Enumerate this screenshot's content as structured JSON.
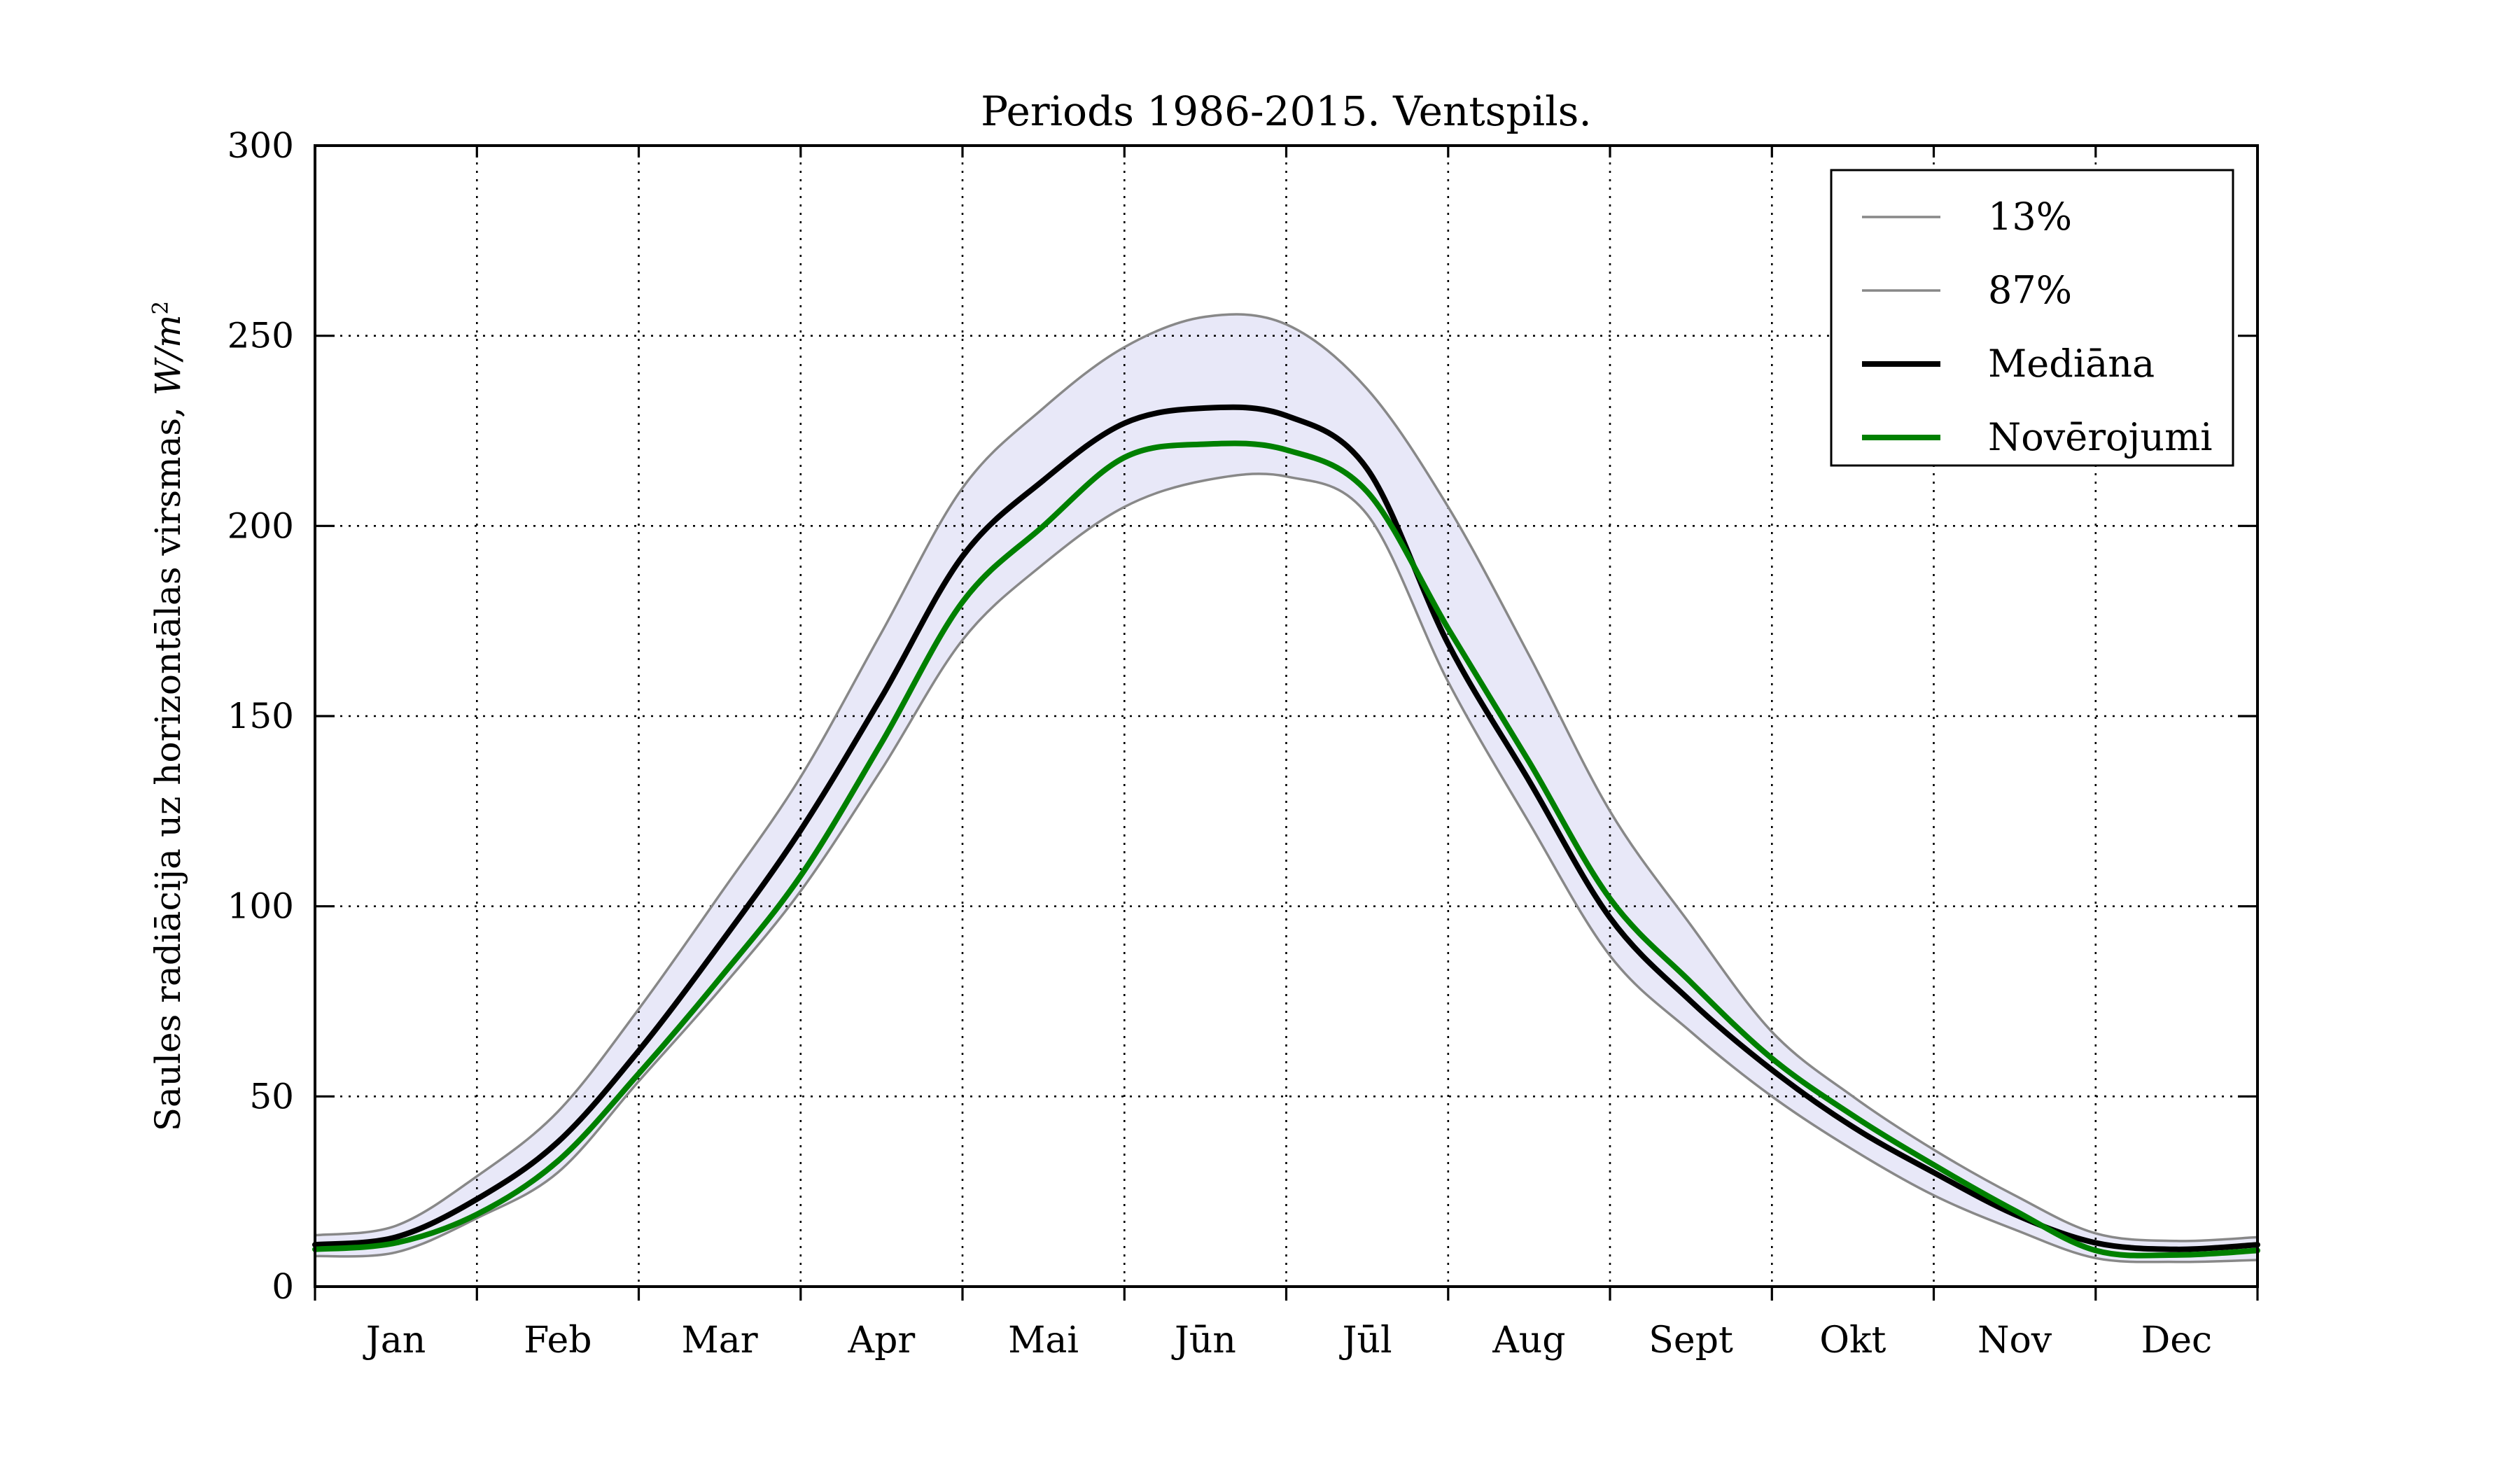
{
  "title": "Periods 1986-2015. Ventspils.",
  "ylabel": {
    "text": "Saules radiācija uz horizontālas virsmas, ",
    "math": "W/m",
    "sup": "2"
  },
  "chart_data": {
    "type": "line",
    "title": "Periods 1986-2015. Ventspils.",
    "xlabel": "",
    "ylabel": "Saules radiācija uz horizontālas virsmas, W/m²",
    "ylim": [
      0,
      300
    ],
    "yticks": [
      0,
      50,
      100,
      150,
      200,
      250,
      300
    ],
    "xticklabels": [
      "Jan",
      "Feb",
      "Mar",
      "Apr",
      "Mai",
      "Jūn",
      "Jūl",
      "Aug",
      "Sept",
      "Okt",
      "Nov",
      "Dec"
    ],
    "x_unit": "months, 0 = 1 Jan … 12 = 31 Dec",
    "grid": true,
    "grid_color": "#000000",
    "legend_position": "upper right",
    "band": {
      "lower": "13%",
      "upper": "87%",
      "fill": "#e8e8f8"
    },
    "x": [
      0,
      0.5,
      1,
      1.5,
      2,
      2.5,
      3,
      3.5,
      4,
      4.5,
      5,
      5.5,
      6,
      6.5,
      7,
      7.5,
      8,
      8.5,
      9,
      9.5,
      10,
      10.5,
      11,
      11.5,
      12
    ],
    "series": [
      {
        "name": "13%",
        "color": "#888888",
        "line_width": 3.5,
        "values": [
          8,
          9,
          18,
          30,
          54,
          78,
          104,
          136,
          170,
          190,
          205,
          212,
          213,
          203,
          159,
          122,
          87,
          67,
          50,
          36,
          24,
          15,
          7.5,
          6.5,
          7
        ]
      },
      {
        "name": "87%",
        "color": "#888888",
        "line_width": 3.5,
        "values": [
          13.5,
          16,
          29,
          46,
          73,
          103,
          134,
          172,
          210,
          231,
          247,
          255,
          253,
          236,
          205,
          166,
          125,
          95,
          67,
          50,
          36,
          24,
          14,
          12,
          13
        ]
      },
      {
        "name": "Mediāna",
        "color": "#000000",
        "line_width": 8,
        "values": [
          11,
          13,
          23,
          38,
          62,
          90,
          120,
          155,
          192,
          212,
          227,
          231,
          229,
          215,
          169,
          133,
          97,
          75,
          57,
          42,
          30,
          19,
          11.5,
          9.8,
          11
        ]
      },
      {
        "name": "Novērojumi",
        "color": "#008000",
        "line_width": 8,
        "values": [
          9.8,
          11.5,
          19,
          33,
          56,
          81,
          108,
          143,
          180,
          200,
          218,
          221.5,
          220,
          209,
          173,
          138,
          102,
          80,
          60,
          45,
          32,
          20,
          9.5,
          8.3,
          9.5
        ]
      }
    ]
  },
  "colors": {
    "axis": "#000000",
    "band_fill": "#e8e8f8",
    "percentile_line": "#888888",
    "median_line": "#000000",
    "observation_line": "#008000",
    "background": "#ffffff"
  }
}
